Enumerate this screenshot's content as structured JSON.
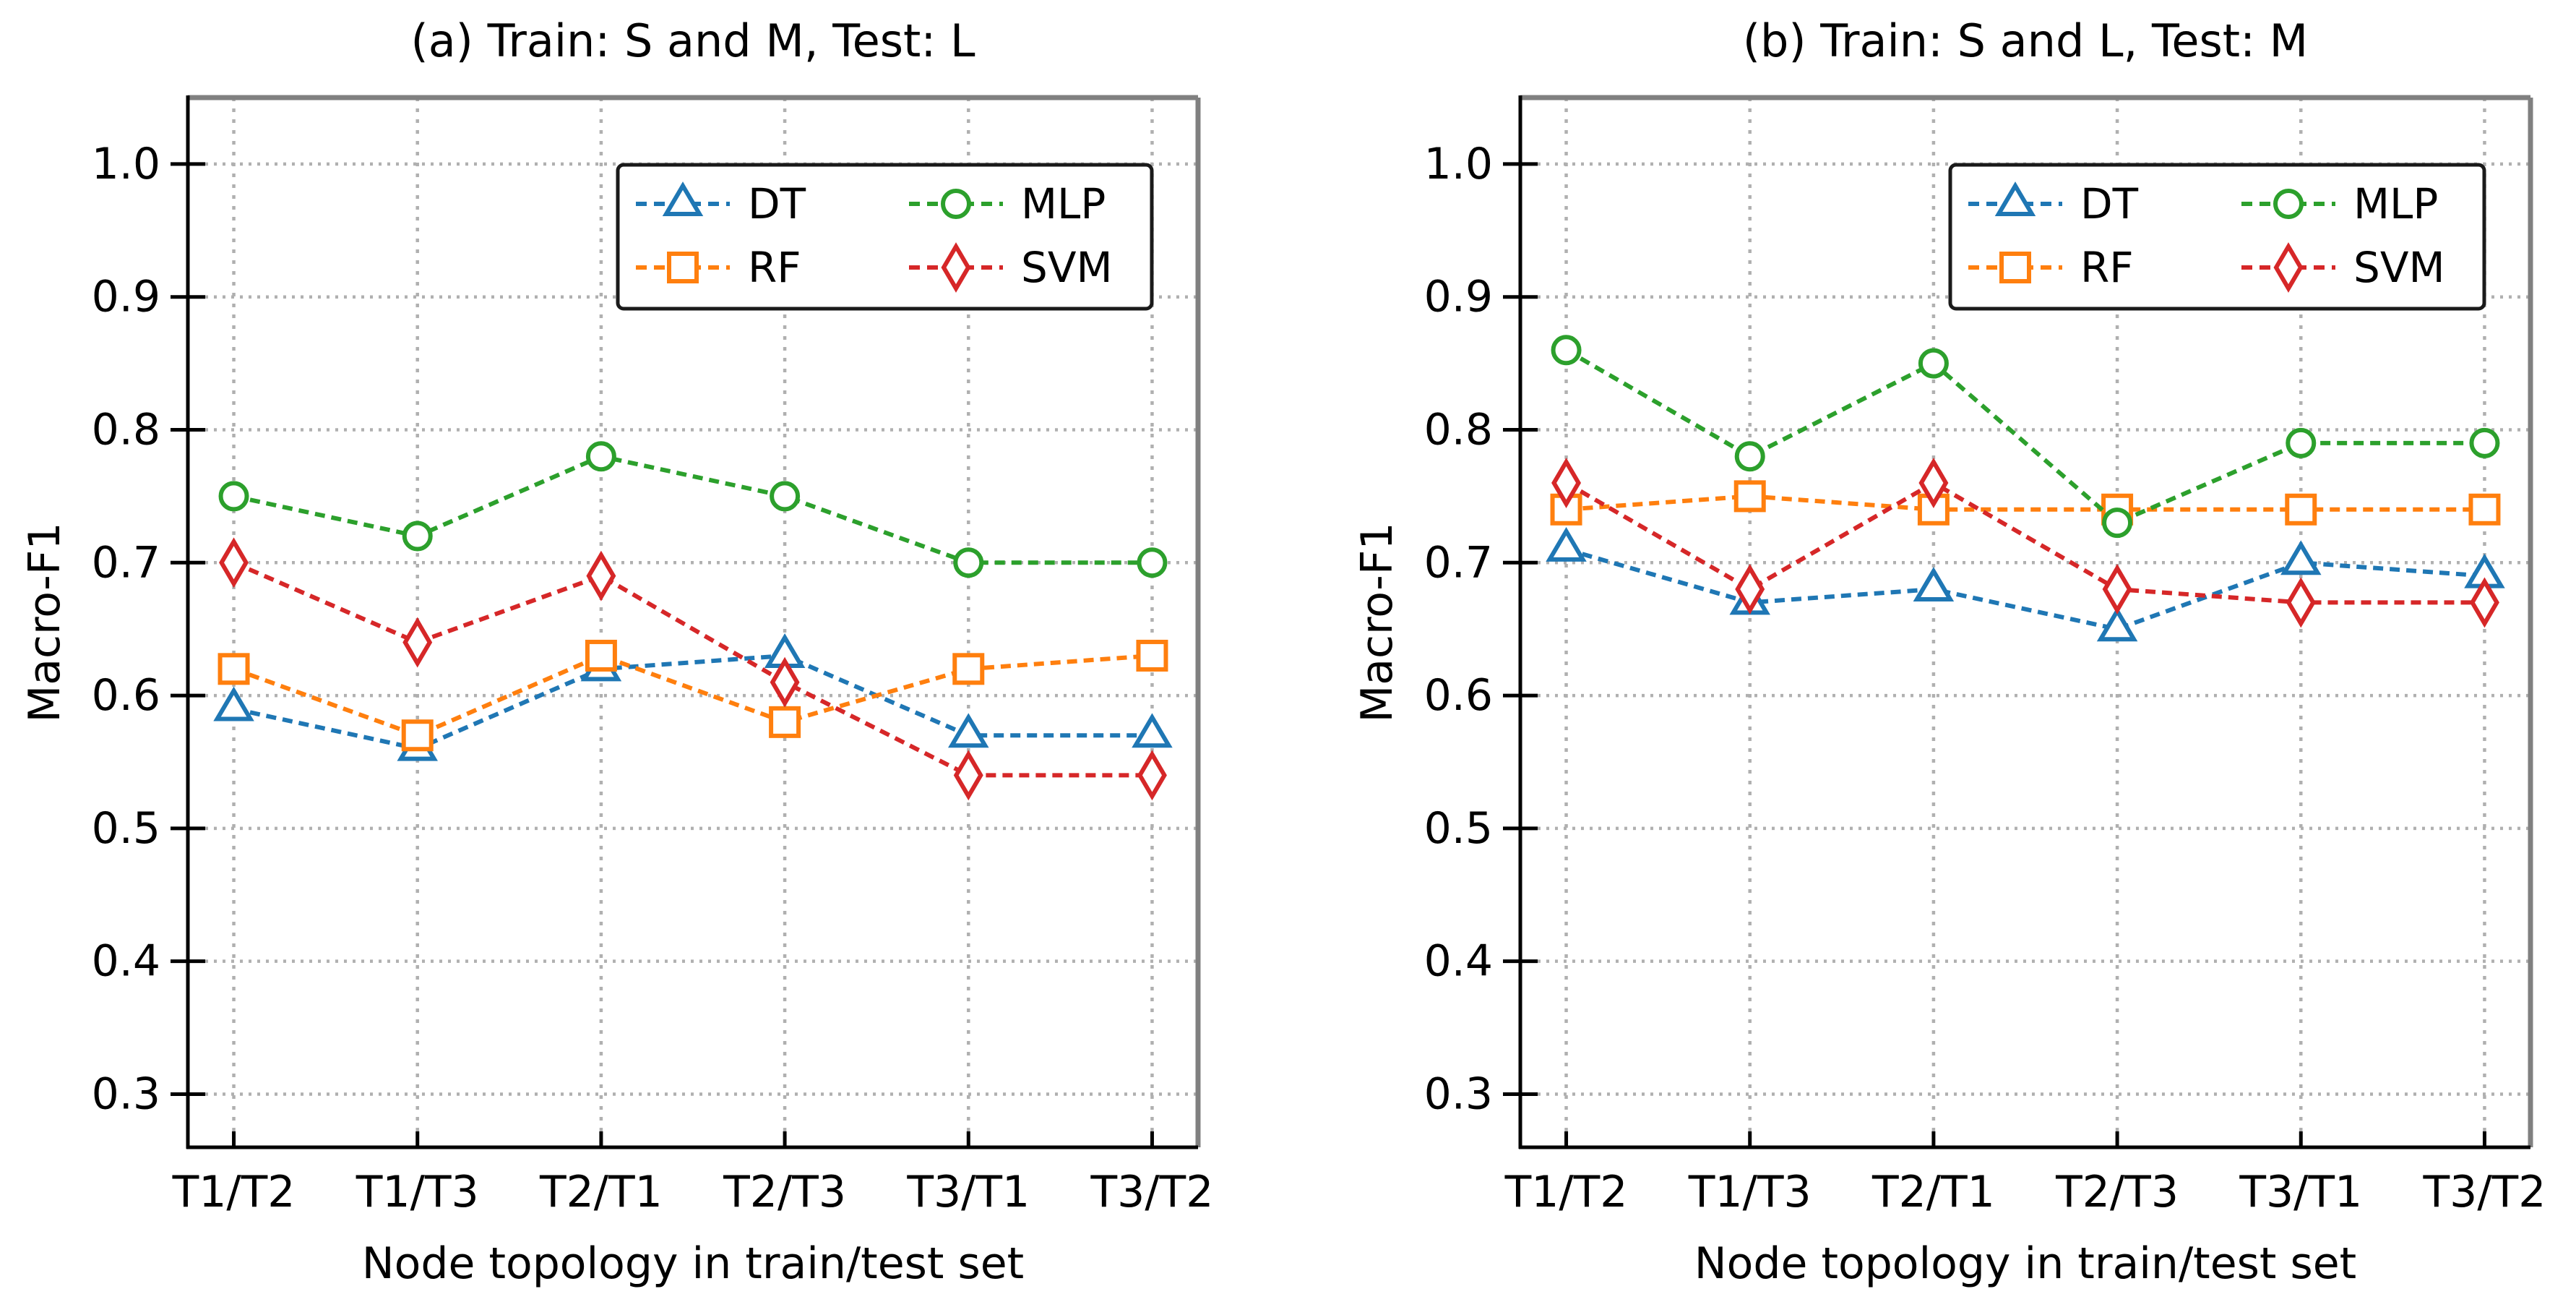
{
  "figure": {
    "background": "#ffffff"
  },
  "style": {
    "grid_color": "#b0b0b0",
    "spine_color_left_bottom": "#000000",
    "spine_color_top_right": "#808080",
    "tick_color": "#000000",
    "text_color": "#000000",
    "legend_border_color": "#1a1a1a",
    "legend_fill": "#ffffff",
    "marker_face_color": "#ffffff"
  },
  "chart_data": [
    {
      "type": "line",
      "panel": "a",
      "title": "(a) Train: S and M, Test: L",
      "xlabel": "Node topology in train/test set",
      "ylabel": "Macro-F1",
      "categories": [
        "T1/T2",
        "T1/T3",
        "T2/T1",
        "T2/T3",
        "T3/T1",
        "T3/T2"
      ],
      "ylim": [
        0.26,
        1.05
      ],
      "yticks": [
        1.0,
        0.9,
        0.8,
        0.7,
        0.6,
        0.5,
        0.4,
        0.3
      ],
      "ytick_labels": [
        "1.0",
        "0.9",
        "0.8",
        "0.7",
        "0.6",
        "0.5",
        "0.4",
        "0.3"
      ],
      "grid": true,
      "line_style": "dashed",
      "legend": {
        "position": "upper right",
        "columns": 2,
        "entries": [
          "DT",
          "RF",
          "MLP",
          "SVM"
        ]
      },
      "series": [
        {
          "name": "DT",
          "color": "#1f77b4",
          "marker": "triangle-up",
          "values": [
            0.59,
            0.56,
            0.62,
            0.63,
            0.57,
            0.57
          ]
        },
        {
          "name": "RF",
          "color": "#ff7f0e",
          "marker": "square",
          "values": [
            0.62,
            0.57,
            0.63,
            0.58,
            0.62,
            0.63
          ]
        },
        {
          "name": "MLP",
          "color": "#2ca02c",
          "marker": "circle",
          "values": [
            0.75,
            0.72,
            0.78,
            0.75,
            0.7,
            0.7
          ]
        },
        {
          "name": "SVM",
          "color": "#d62728",
          "marker": "thin-diamond",
          "values": [
            0.7,
            0.64,
            0.69,
            0.61,
            0.54,
            0.54
          ]
        }
      ]
    },
    {
      "type": "line",
      "panel": "b",
      "title": "(b) Train: S and L, Test: M",
      "xlabel": "Node topology in train/test set",
      "ylabel": "Macro-F1",
      "categories": [
        "T1/T2",
        "T1/T3",
        "T2/T1",
        "T2/T3",
        "T3/T1",
        "T3/T2"
      ],
      "ylim": [
        0.26,
        1.05
      ],
      "yticks": [
        1.0,
        0.9,
        0.8,
        0.7,
        0.6,
        0.5,
        0.4,
        0.3
      ],
      "ytick_labels": [
        "1.0",
        "0.9",
        "0.8",
        "0.7",
        "0.6",
        "0.5",
        "0.4",
        "0.3"
      ],
      "grid": true,
      "line_style": "dashed",
      "legend": {
        "position": "upper right",
        "columns": 2,
        "entries": [
          "DT",
          "RF",
          "MLP",
          "SVM"
        ]
      },
      "series": [
        {
          "name": "DT",
          "color": "#1f77b4",
          "marker": "triangle-up",
          "values": [
            0.71,
            0.67,
            0.68,
            0.65,
            0.7,
            0.69
          ]
        },
        {
          "name": "RF",
          "color": "#ff7f0e",
          "marker": "square",
          "values": [
            0.74,
            0.75,
            0.74,
            0.74,
            0.74,
            0.74
          ]
        },
        {
          "name": "MLP",
          "color": "#2ca02c",
          "marker": "circle",
          "values": [
            0.86,
            0.78,
            0.85,
            0.73,
            0.79,
            0.79
          ]
        },
        {
          "name": "SVM",
          "color": "#d62728",
          "marker": "thin-diamond",
          "values": [
            0.76,
            0.68,
            0.76,
            0.68,
            0.67,
            0.67
          ]
        }
      ]
    }
  ]
}
